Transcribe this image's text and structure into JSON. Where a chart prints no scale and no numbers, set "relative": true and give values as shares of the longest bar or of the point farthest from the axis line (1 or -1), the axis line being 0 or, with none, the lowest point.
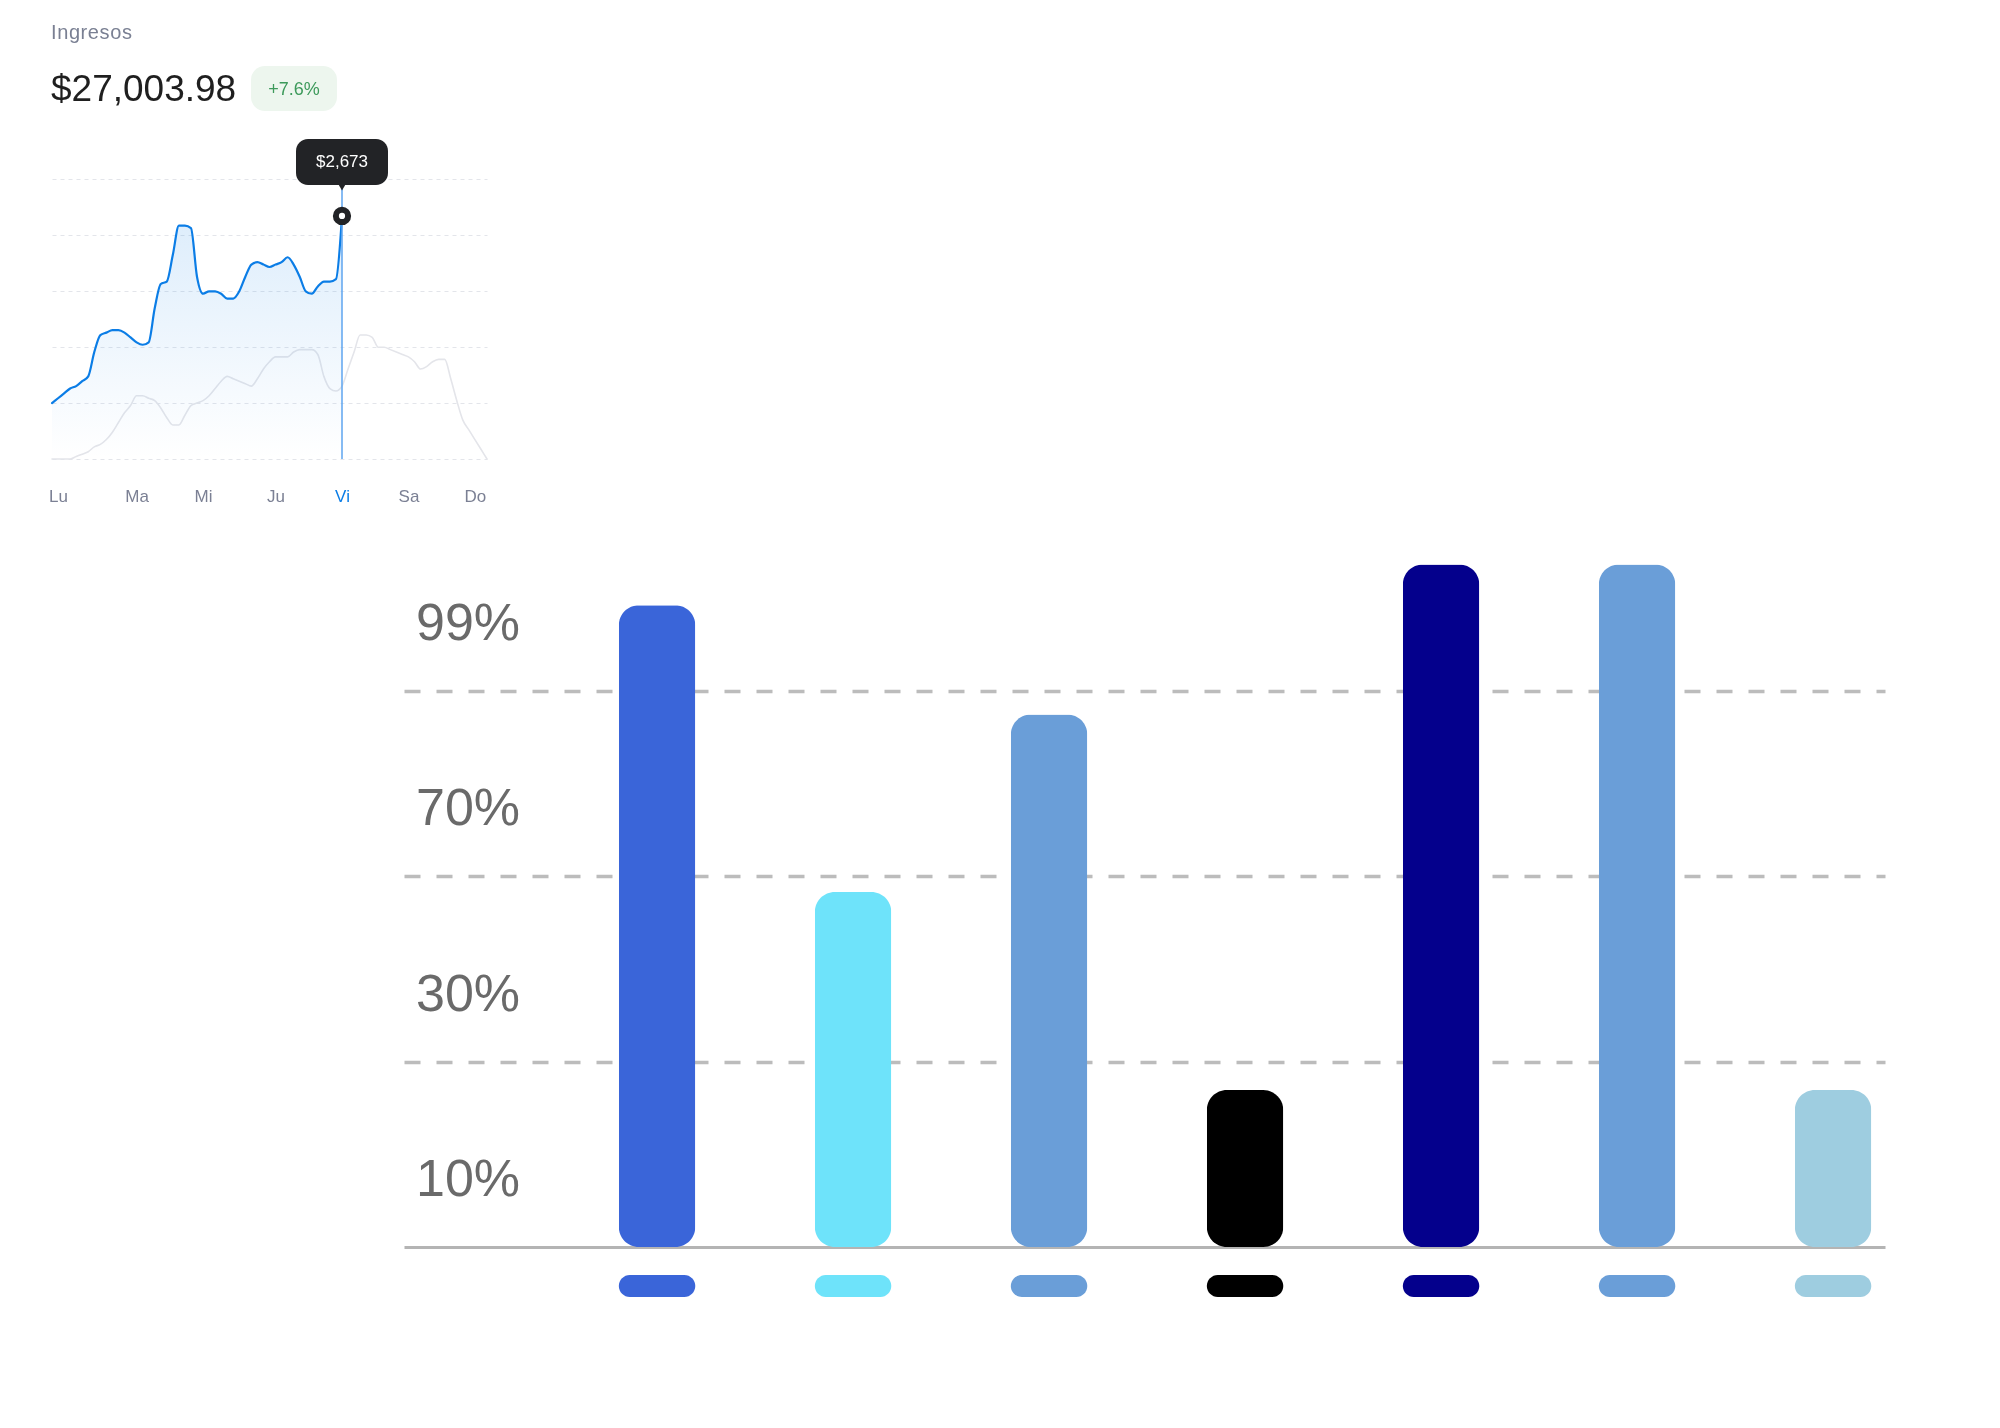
{
  "chart_data": [
    {
      "type": "line",
      "title": "Ingresos",
      "subtitle": "$27,003.98",
      "annotations": [
        "+7.6%",
        {
          "text": "$2,673",
          "x": "Vi",
          "y": 1
        }
      ],
      "relative": true,
      "grid": "y",
      "tick_labels": "x",
      "categories": [
        null,
        "Lu",
        null,
        null,
        null,
        null,
        null,
        null,
        null,
        null,
        null,
        null,
        null,
        null,
        "Ma",
        null,
        null,
        null,
        null,
        null,
        null,
        null,
        null,
        null,
        null,
        "Mi",
        null,
        null,
        null,
        null,
        null,
        null,
        null,
        null,
        null,
        null,
        null,
        "Ju",
        null,
        null,
        null,
        null,
        null,
        null,
        null,
        null,
        null,
        null,
        "Vi",
        null,
        null,
        null,
        null,
        null,
        null,
        null,
        null,
        null,
        null,
        "Sa",
        null,
        null,
        null,
        null,
        null,
        null,
        null,
        null,
        null,
        null,
        "Do",
        null,
        null
      ],
      "series": [
        {
          "type": "line",
          "color": "#e4e5ea",
          "values": [
            0,
            0,
            0,
            0,
            0.01,
            0.02,
            0.03,
            0.05,
            0.06,
            0.08,
            0.11,
            0.15,
            0.19,
            0.22,
            0.26,
            0.26,
            0.25,
            0.24,
            0.21,
            0.17,
            0.14,
            0.14,
            0.18,
            0.22,
            0.23,
            0.24,
            0.26,
            0.29,
            0.32,
            0.34,
            0.33,
            0.32,
            0.31,
            0.3,
            0.33,
            0.37,
            0.4,
            0.42,
            0.42,
            0.42,
            0.44,
            0.45,
            0.45,
            0.45,
            0.43,
            0.34,
            0.29,
            0.28,
            0.3,
            0.37,
            0.44,
            0.51,
            0.51,
            0.5,
            0.46,
            0.46,
            0.45,
            0.44,
            0.43,
            0.42,
            0.4,
            0.37,
            0.38,
            0.4,
            0.41,
            0.41,
            0.33,
            0.24,
            0.16,
            0.12,
            0.08,
            0.04,
            0
          ]
        },
        {
          "type": "area",
          "color": "#0b7de6",
          "values": [
            0.23,
            0.25,
            0.27,
            0.29,
            0.3,
            0.32,
            0.34,
            0.44,
            0.51,
            0.52,
            0.53,
            0.53,
            0.52,
            0.5,
            0.48,
            0.47,
            0.48,
            0.62,
            0.72,
            0.73,
            0.84,
            0.96,
            0.96,
            0.95,
            0.75,
            0.68,
            0.69,
            0.69,
            0.68,
            0.66,
            0.66,
            0.69,
            0.75,
            0.8,
            0.81,
            0.8,
            0.79,
            0.8,
            0.81,
            0.83,
            0.8,
            0.75,
            0.69,
            0.68,
            0.71,
            0.73,
            0.73,
            0.74,
            1,
            null,
            null,
            null,
            null,
            null,
            null,
            null,
            null,
            null,
            null,
            null,
            null,
            null,
            null,
            null,
            null,
            null,
            null,
            null,
            null,
            null,
            null,
            null,
            null
          ]
        }
      ],
      "ref_lines": [
        {
          "axis": "x",
          "value": "Vi",
          "color": "#5ea5ef"
        }
      ]
    },
    {
      "type": "bar",
      "categories": [
        null,
        null,
        null,
        null,
        null,
        null,
        null
      ],
      "values": [
        0.94,
        0.52,
        0.78,
        0.23,
        1,
        1,
        0.23
      ],
      "colors": [
        "#3a65d9",
        "#6ee3fa",
        "#6a9ed8",
        "#000000",
        "#04008c",
        "#6a9ed8",
        "#9ecde0"
      ],
      "relative": true,
      "grid": "y",
      "tick_labels": false,
      "annotations": [
        "99%",
        "70%",
        "30%",
        "10%"
      ]
    }
  ]
}
